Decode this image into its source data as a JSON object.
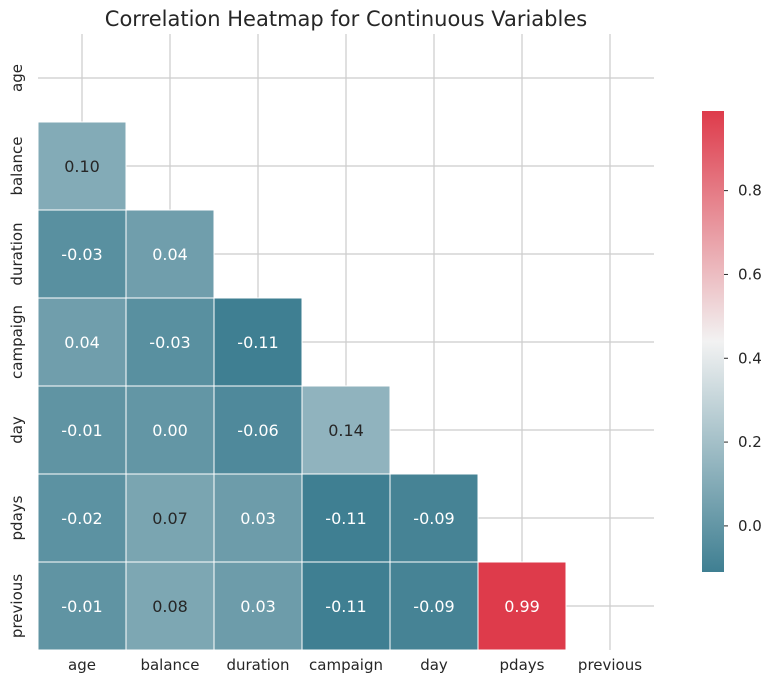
{
  "chart_data": {
    "type": "heatmap",
    "title": "Correlation Heatmap for Continuous Variables",
    "variables": [
      "age",
      "balance",
      "duration",
      "campaign",
      "day",
      "pdays",
      "previous"
    ],
    "mask": "upper-triangle-including-diagonal",
    "cells": [
      {
        "row": "balance",
        "col": "age",
        "value": 0.1,
        "label": "0.10"
      },
      {
        "row": "duration",
        "col": "age",
        "value": -0.03,
        "label": "-0.03"
      },
      {
        "row": "duration",
        "col": "balance",
        "value": 0.04,
        "label": "0.04"
      },
      {
        "row": "campaign",
        "col": "age",
        "value": 0.04,
        "label": "0.04"
      },
      {
        "row": "campaign",
        "col": "balance",
        "value": -0.03,
        "label": "-0.03"
      },
      {
        "row": "campaign",
        "col": "duration",
        "value": -0.11,
        "label": "-0.11"
      },
      {
        "row": "day",
        "col": "age",
        "value": -0.01,
        "label": "-0.01"
      },
      {
        "row": "day",
        "col": "balance",
        "value": 0.0,
        "label": "0.00"
      },
      {
        "row": "day",
        "col": "duration",
        "value": -0.06,
        "label": "-0.06"
      },
      {
        "row": "day",
        "col": "campaign",
        "value": 0.14,
        "label": "0.14"
      },
      {
        "row": "pdays",
        "col": "age",
        "value": -0.02,
        "label": "-0.02"
      },
      {
        "row": "pdays",
        "col": "balance",
        "value": 0.07,
        "label": "0.07"
      },
      {
        "row": "pdays",
        "col": "duration",
        "value": 0.03,
        "label": "0.03"
      },
      {
        "row": "pdays",
        "col": "campaign",
        "value": -0.11,
        "label": "-0.11"
      },
      {
        "row": "pdays",
        "col": "day",
        "value": -0.09,
        "label": "-0.09"
      },
      {
        "row": "previous",
        "col": "age",
        "value": -0.01,
        "label": "-0.01"
      },
      {
        "row": "previous",
        "col": "balance",
        "value": 0.08,
        "label": "0.08"
      },
      {
        "row": "previous",
        "col": "duration",
        "value": 0.03,
        "label": "0.03"
      },
      {
        "row": "previous",
        "col": "campaign",
        "value": -0.11,
        "label": "-0.11"
      },
      {
        "row": "previous",
        "col": "day",
        "value": -0.09,
        "label": "-0.09"
      },
      {
        "row": "previous",
        "col": "pdays",
        "value": 0.99,
        "label": "0.99"
      }
    ],
    "colorbar": {
      "range": [
        -0.11,
        0.99
      ],
      "ticks": [
        0.0,
        0.2,
        0.4,
        0.6,
        0.8
      ],
      "tick_labels": [
        "0.0",
        "0.2",
        "0.4",
        "0.6",
        "0.8"
      ]
    },
    "colormap": {
      "name": "diverging-teal-red",
      "stops": [
        {
          "value": -0.11,
          "color": "#3f7f92"
        },
        {
          "value": 0.44,
          "color": "#f2f2f2"
        },
        {
          "value": 0.99,
          "color": "#de3b4b"
        }
      ]
    },
    "grid": true,
    "legend_placement": "right"
  },
  "colors": {
    "background": "#ffffff",
    "grid": "#cccccc",
    "cell_border": "#ffffff",
    "text_dark_cell": "#ffffff",
    "text_light_cell": "#262626",
    "axis_text": "#262626"
  }
}
